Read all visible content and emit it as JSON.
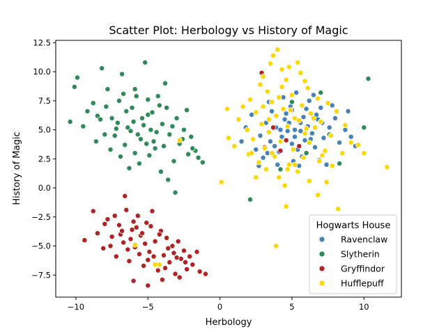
{
  "chart_data": {
    "type": "scatter",
    "title": "Scatter Plot: Herbology vs History of Magic",
    "xlabel": "Herbology",
    "ylabel": "History of Magic",
    "xlim": [
      -11.4,
      12.6
    ],
    "ylim": [
      -9.4,
      12.7
    ],
    "xticks": [
      -10,
      -5,
      0,
      5,
      10
    ],
    "xtick_labels": [
      "−10",
      "−5",
      "0",
      "5",
      "10"
    ],
    "yticks": [
      -7.5,
      -5.0,
      -2.5,
      0.0,
      2.5,
      5.0,
      7.5,
      10.0,
      12.5
    ],
    "ytick_labels": [
      "−7.5",
      "−5.0",
      "−2.5",
      "0.0",
      "2.5",
      "5.0",
      "7.5",
      "10.0",
      "12.5"
    ],
    "grid": false,
    "legend": {
      "title": "Hogwarts House",
      "position": "lower-right",
      "entries": [
        "Ravenclaw",
        "Slytherin",
        "Gryffindor",
        "Hufflepuff"
      ]
    },
    "series": [
      {
        "name": "Ravenclaw",
        "color": "#4682b4",
        "points": [
          [
            5.2,
            5.0
          ],
          [
            4.8,
            5.6
          ],
          [
            5.6,
            4.9
          ],
          [
            6.1,
            5.3
          ],
          [
            4.3,
            4.4
          ],
          [
            5.0,
            3.8
          ],
          [
            6.4,
            4.7
          ],
          [
            3.9,
            5.2
          ],
          [
            5.8,
            6.1
          ],
          [
            4.6,
            6.4
          ],
          [
            6.8,
            5.9
          ],
          [
            7.2,
            4.3
          ],
          [
            3.5,
            4.0
          ],
          [
            5.4,
            3.3
          ],
          [
            6.0,
            6.8
          ],
          [
            4.1,
            3.1
          ],
          [
            7.6,
            5.2
          ],
          [
            3.2,
            5.6
          ],
          [
            5.7,
            2.7
          ],
          [
            6.6,
            3.5
          ],
          [
            2.8,
            4.5
          ],
          [
            8.0,
            6.0
          ],
          [
            4.9,
            7.0
          ],
          [
            7.0,
            6.9
          ],
          [
            3.6,
            6.6
          ],
          [
            5.1,
            2.3
          ],
          [
            8.3,
            3.9
          ],
          [
            2.5,
            3.3
          ],
          [
            6.2,
            7.5
          ],
          [
            4.4,
            7.8
          ],
          [
            7.8,
            7.1
          ],
          [
            3.0,
            2.6
          ],
          [
            8.7,
            5.0
          ],
          [
            5.5,
            1.9
          ],
          [
            1.8,
            5.2
          ],
          [
            9.1,
            4.4
          ],
          [
            2.2,
            6.3
          ],
          [
            6.9,
            2.4
          ],
          [
            4.0,
            2.0
          ],
          [
            9.4,
            3.6
          ],
          [
            1.5,
            4.0
          ],
          [
            5.3,
            8.2
          ],
          [
            7.4,
            2.0
          ],
          [
            3.4,
            7.4
          ],
          [
            8.9,
            6.6
          ],
          [
            2.7,
            1.9
          ],
          [
            6.5,
            8.0
          ],
          [
            4.7,
            4.9
          ],
          [
            5.9,
            4.1
          ],
          [
            4.5,
            5.9
          ],
          [
            6.3,
            4.2
          ],
          [
            5.0,
            6.7
          ],
          [
            3.8,
            3.6
          ],
          [
            6.7,
            6.3
          ],
          [
            5.6,
            5.6
          ],
          [
            4.2,
            5.0
          ],
          [
            7.1,
            5.6
          ],
          [
            3.3,
            3.0
          ],
          [
            5.2,
            4.4
          ],
          [
            6.0,
            3.0
          ]
        ]
      },
      {
        "name": "Slytherin",
        "color": "#2e8b57",
        "points": [
          [
            -10.4,
            5.7
          ],
          [
            -10.1,
            8.7
          ],
          [
            -9.9,
            9.5
          ],
          [
            -9.5,
            5.3
          ],
          [
            -9.2,
            6.6
          ],
          [
            -8.8,
            7.3
          ],
          [
            -8.5,
            6.2
          ],
          [
            -8.2,
            10.3
          ],
          [
            -8.0,
            4.6
          ],
          [
            -7.8,
            8.5
          ],
          [
            -7.5,
            6.0
          ],
          [
            -7.2,
            5.1
          ],
          [
            -7.0,
            7.5
          ],
          [
            -6.8,
            9.8
          ],
          [
            -6.5,
            6.6
          ],
          [
            -6.2,
            4.9
          ],
          [
            -6.0,
            5.7
          ],
          [
            -5.8,
            7.9
          ],
          [
            -5.5,
            4.2
          ],
          [
            -5.2,
            10.8
          ],
          [
            -5.0,
            6.3
          ],
          [
            -4.8,
            5.0
          ],
          [
            -4.5,
            3.4
          ],
          [
            -4.2,
            7.1
          ],
          [
            -4.0,
            5.5
          ],
          [
            -3.8,
            9.0
          ],
          [
            -3.5,
            4.6
          ],
          [
            -3.2,
            2.3
          ],
          [
            -3.0,
            6.0
          ],
          [
            -2.8,
            3.8
          ],
          [
            -2.5,
            5.0
          ],
          [
            -2.2,
            2.9
          ],
          [
            -2.0,
            4.4
          ],
          [
            -1.7,
            3.2
          ],
          [
            -1.5,
            2.6
          ],
          [
            -1.2,
            2.2
          ],
          [
            -7.6,
            3.3
          ],
          [
            -6.9,
            2.7
          ],
          [
            -6.3,
            1.7
          ],
          [
            -5.6,
            2.1
          ],
          [
            -4.9,
            2.8
          ],
          [
            -4.1,
            1.4
          ],
          [
            -3.6,
            0.7
          ],
          [
            -3.1,
            -0.4
          ],
          [
            -8.6,
            4.0
          ],
          [
            -7.3,
            4.5
          ],
          [
            -6.6,
            3.7
          ],
          [
            -5.9,
            3.0
          ],
          [
            -5.3,
            5.4
          ],
          [
            -4.6,
            4.0
          ],
          [
            -3.9,
            3.6
          ],
          [
            -3.3,
            5.3
          ],
          [
            -2.6,
            4.2
          ],
          [
            -2.3,
            6.7
          ],
          [
            -1.9,
            3.4
          ],
          [
            -6.1,
            6.9
          ],
          [
            -5.4,
            6.0
          ],
          [
            -4.7,
            6.5
          ],
          [
            -4.4,
            4.8
          ],
          [
            -7.1,
            5.6
          ],
          [
            -6.4,
            5.2
          ],
          [
            -5.7,
            4.6
          ],
          [
            -5.1,
            3.8
          ],
          [
            -8.3,
            5.9
          ],
          [
            -7.9,
            7.0
          ],
          [
            -6.7,
            8.1
          ],
          [
            -5.9,
            8.5
          ],
          [
            -5.0,
            7.6
          ],
          [
            -4.3,
            7.9
          ],
          [
            -3.7,
            6.9
          ],
          [
            2.1,
            -1.0
          ],
          [
            8.3,
            2.1
          ],
          [
            10.0,
            5.2
          ],
          [
            10.3,
            9.4
          ],
          [
            7.0,
            8.2
          ],
          [
            6.0,
            3.0
          ],
          [
            7.6,
            4.6
          ],
          [
            5.0,
            7.4
          ],
          [
            4.2,
            1.6
          ]
        ]
      },
      {
        "name": "Gryffindor",
        "color": "#b22222",
        "points": [
          [
            -9.4,
            -4.5
          ],
          [
            -8.8,
            -2.0
          ],
          [
            -8.5,
            -3.9
          ],
          [
            -8.1,
            -5.2
          ],
          [
            -7.8,
            -2.7
          ],
          [
            -7.5,
            -4.2
          ],
          [
            -7.2,
            -5.9
          ],
          [
            -7.0,
            -3.2
          ],
          [
            -6.7,
            -4.7
          ],
          [
            -6.5,
            -1.9
          ],
          [
            -6.3,
            -6.3
          ],
          [
            -6.1,
            -3.6
          ],
          [
            -5.9,
            -5.1
          ],
          [
            -5.7,
            -2.4
          ],
          [
            -5.5,
            -4.1
          ],
          [
            -5.3,
            -6.7
          ],
          [
            -5.1,
            -3.0
          ],
          [
            -4.9,
            -5.5
          ],
          [
            -4.7,
            -2.0
          ],
          [
            -4.5,
            -4.6
          ],
          [
            -4.3,
            -7.1
          ],
          [
            -4.1,
            -3.7
          ],
          [
            -3.9,
            -5.8
          ],
          [
            -3.7,
            -4.3
          ],
          [
            -3.5,
            -6.4
          ],
          [
            -3.3,
            -5.0
          ],
          [
            -3.1,
            -7.4
          ],
          [
            -2.9,
            -4.6
          ],
          [
            -2.7,
            -6.1
          ],
          [
            -2.5,
            -5.4
          ],
          [
            -2.3,
            -7.0
          ],
          [
            -2.1,
            -5.9
          ],
          [
            -1.9,
            -6.6
          ],
          [
            -1.6,
            -5.5
          ],
          [
            -1.4,
            -7.2
          ],
          [
            -1.0,
            -7.4
          ],
          [
            -6.6,
            -0.7
          ],
          [
            -6.0,
            -8.0
          ],
          [
            -5.0,
            -8.4
          ],
          [
            -4.0,
            -7.9
          ],
          [
            -2.8,
            -7.7
          ],
          [
            -8.0,
            -3.1
          ],
          [
            -7.6,
            -5.0
          ],
          [
            -6.9,
            -4.0
          ],
          [
            -6.4,
            -5.3
          ],
          [
            -5.8,
            -3.4
          ],
          [
            -5.2,
            -4.8
          ],
          [
            -4.6,
            -5.9
          ],
          [
            -4.2,
            -4.0
          ],
          [
            -3.6,
            -5.2
          ],
          [
            -3.0,
            -6.0
          ],
          [
            -2.4,
            -6.4
          ],
          [
            -7.3,
            -2.4
          ],
          [
            -6.8,
            -3.7
          ],
          [
            -6.2,
            -4.4
          ],
          [
            -5.6,
            -5.7
          ],
          [
            -5.0,
            -6.2
          ],
          [
            -4.4,
            -6.6
          ],
          [
            -3.8,
            -6.9
          ],
          [
            -3.2,
            -5.6
          ],
          [
            -4.8,
            -3.3
          ],
          [
            -5.4,
            -3.9
          ],
          [
            -6.0,
            -2.9
          ],
          [
            2.9,
            9.9
          ],
          [
            3.7,
            5.2
          ],
          [
            4.2,
            3.2
          ],
          [
            3.1,
            3.5
          ],
          [
            4.6,
            4.1
          ],
          [
            5.5,
            3.6
          ]
        ]
      },
      {
        "name": "Hufflepuff",
        "color": "#ffd700",
        "points": [
          [
            4.0,
            11.9
          ],
          [
            3.7,
            11.4
          ],
          [
            3.5,
            10.7
          ],
          [
            4.3,
            10.2
          ],
          [
            5.4,
            10.8
          ],
          [
            5.6,
            9.9
          ],
          [
            3.0,
            9.6
          ],
          [
            4.6,
            9.3
          ],
          [
            2.8,
            8.9
          ],
          [
            6.1,
            8.6
          ],
          [
            3.3,
            8.3
          ],
          [
            5.0,
            8.0
          ],
          [
            4.1,
            7.8
          ],
          [
            2.1,
            7.6
          ],
          [
            6.8,
            7.7
          ],
          [
            3.6,
            7.4
          ],
          [
            5.7,
            7.1
          ],
          [
            1.6,
            7.0
          ],
          [
            7.5,
            7.3
          ],
          [
            4.4,
            6.8
          ],
          [
            2.5,
            6.5
          ],
          [
            6.3,
            6.4
          ],
          [
            0.5,
            6.8
          ],
          [
            8.1,
            6.6
          ],
          [
            3.9,
            6.2
          ],
          [
            5.2,
            6.0
          ],
          [
            1.3,
            5.9
          ],
          [
            7.0,
            5.7
          ],
          [
            2.9,
            5.5
          ],
          [
            4.7,
            5.3
          ],
          [
            6.6,
            5.2
          ],
          [
            8.7,
            5.4
          ],
          [
            1.9,
            5.0
          ],
          [
            3.4,
            4.8
          ],
          [
            5.9,
            4.7
          ],
          [
            0.6,
            4.3
          ],
          [
            7.7,
            4.5
          ],
          [
            2.3,
            4.2
          ],
          [
            4.2,
            4.0
          ],
          [
            6.2,
            3.9
          ],
          [
            9.1,
            3.9
          ],
          [
            1.0,
            3.6
          ],
          [
            3.1,
            3.4
          ],
          [
            5.1,
            3.3
          ],
          [
            7.3,
            3.2
          ],
          [
            8.5,
            3.0
          ],
          [
            2.0,
            2.9
          ],
          [
            3.8,
            2.7
          ],
          [
            5.8,
            2.6
          ],
          [
            6.9,
            2.3
          ],
          [
            2.7,
            2.2
          ],
          [
            4.8,
            2.0
          ],
          [
            7.8,
            1.9
          ],
          [
            3.2,
            1.6
          ],
          [
            5.4,
            1.4
          ],
          [
            4.1,
            0.9
          ],
          [
            6.2,
            0.6
          ],
          [
            2.5,
            0.9
          ],
          [
            4.5,
            0.2
          ],
          [
            0.1,
            0.5
          ],
          [
            7.4,
            0.5
          ],
          [
            4.6,
            -1.6
          ],
          [
            6.8,
            -0.6
          ],
          [
            8.2,
            -1.8
          ],
          [
            11.6,
            1.8
          ],
          [
            10.0,
            3.0
          ],
          [
            9.6,
            3.7
          ],
          [
            3.9,
            -5.0
          ],
          [
            -4.2,
            -6.6
          ],
          [
            -4.5,
            -6.6
          ],
          [
            -2.8,
            4.1
          ],
          [
            -5.9,
            -4.9
          ],
          [
            4.9,
            6.7
          ],
          [
            5.5,
            5.8
          ],
          [
            4.3,
            8.7
          ],
          [
            3.0,
            7.0
          ],
          [
            5.9,
            9.2
          ],
          [
            4.8,
            10.4
          ],
          [
            6.5,
            6.0
          ],
          [
            3.6,
            3.0
          ],
          [
            5.2,
            2.0
          ],
          [
            2.2,
            3.0
          ],
          [
            7.1,
            2.8
          ],
          [
            6.0,
            5.1
          ],
          [
            3.4,
            5.9
          ],
          [
            4.7,
            1.6
          ]
        ]
      }
    ]
  }
}
